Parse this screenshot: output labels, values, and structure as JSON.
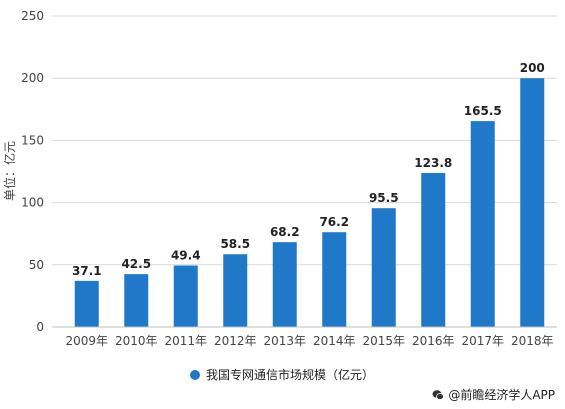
{
  "chart_data": {
    "type": "bar",
    "categories": [
      "2009年",
      "2010年",
      "2011年",
      "2012年",
      "2013年",
      "2014年",
      "2015年",
      "2016年",
      "2017年",
      "2018年"
    ],
    "series": [
      {
        "name": "我国专网通信市场规模（亿元）",
        "values": [
          37.1,
          42.5,
          49.4,
          58.5,
          68.2,
          76.2,
          95.5,
          123.8,
          165.5,
          200
        ]
      }
    ],
    "data_labels": [
      "37.1",
      "42.5",
      "49.4",
      "58.5",
      "68.2",
      "76.2",
      "95.5",
      "123.8",
      "165.5",
      "200"
    ],
    "ylabel": "单位：亿元",
    "ylim": [
      0,
      250
    ],
    "yticks": [
      0,
      50,
      100,
      150,
      200,
      250
    ],
    "grid": true,
    "legend": "bottom-center",
    "bar_color": "#1f78c8"
  },
  "credit": "@前瞻经济学人APP"
}
